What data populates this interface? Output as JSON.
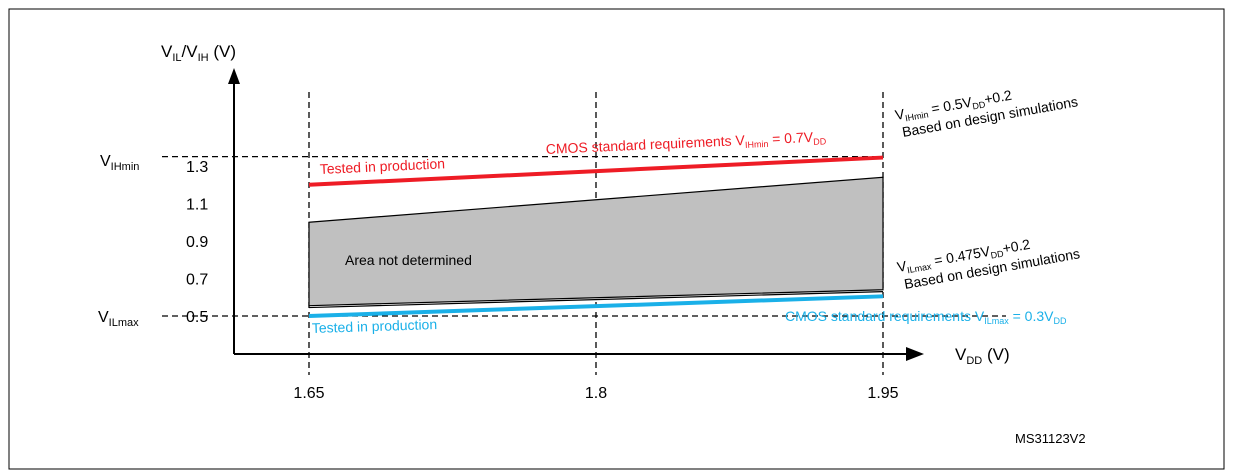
{
  "figure_id": "MS31123V2",
  "chart_data": {
    "type": "line",
    "x_axis": {
      "label_main": "V",
      "label_sub": "DD",
      "label_unit": " (V)",
      "ticks": [
        1.65,
        1.8,
        1.95
      ],
      "tick_labels": [
        "1.65",
        "1.8",
        "1.95"
      ],
      "range": [
        1.65,
        1.95
      ]
    },
    "y_axis": {
      "label_v1": "V",
      "label_sub1": "IL",
      "label_slash": "/V",
      "label_sub2": "IH",
      "label_unit": " (V)",
      "ticks": [
        0.5,
        0.7,
        0.9,
        1.1,
        1.3
      ],
      "tick_labels": [
        "0.5",
        "0.7",
        "0.9",
        "1.1",
        "1.3"
      ],
      "special_ticks": [
        {
          "main": "V",
          "sub": "IHmin",
          "y": 1.35
        },
        {
          "main": "V",
          "sub": "ILmax",
          "y": 0.5
        }
      ]
    },
    "reference_lines": {
      "vertical_x": [
        1.65,
        1.8,
        1.95
      ],
      "horizontal_y": [
        1.35,
        0.5
      ]
    },
    "series": [
      {
        "key": "red",
        "color": "#ee1c25",
        "x": [
          1.65,
          1.95
        ],
        "y": [
          1.2,
          1.345
        ]
      },
      {
        "key": "blue",
        "color": "#1ab0e8",
        "x": [
          1.65,
          1.95
        ],
        "y": [
          0.5,
          0.605
        ]
      }
    ],
    "area_not_determined": {
      "label": "Area not determined",
      "fill": "#c0c0c0",
      "x": [
        1.65,
        1.95
      ],
      "y_top": [
        1.0,
        1.24
      ],
      "y_bottom": [
        0.555,
        0.64
      ],
      "lower_line_y": [
        0.545,
        0.63
      ]
    },
    "annotations": {
      "red_tested": "Tested in production",
      "red_req_prefix": "CMOS standard   requirements V",
      "red_req_sub": "IHmin",
      "red_req_mid": " = 0.7V",
      "red_req_sub2": "DD",
      "blue_tested": "Tested in production",
      "blue_req_prefix": "CMOS standard  requirements V",
      "blue_req_sub": "ILmax",
      "blue_req_mid": " = 0.3V",
      "blue_req_sub2": "DD",
      "vih_formula_main": "V",
      "vih_formula_sub": "IHmin",
      "vih_formula_mid": " = 0.5V",
      "vih_formula_sub2": "DD",
      "vih_formula_end": "+0.2",
      "vih_note": "Based on design simulations",
      "vil_formula_main": "V",
      "vil_formula_sub": "ILmax",
      "vil_formula_mid": " = 0.475V",
      "vil_formula_sub2": "DD",
      "vil_formula_end": "+0.2",
      "vil_note": "Based on design simulations"
    }
  }
}
